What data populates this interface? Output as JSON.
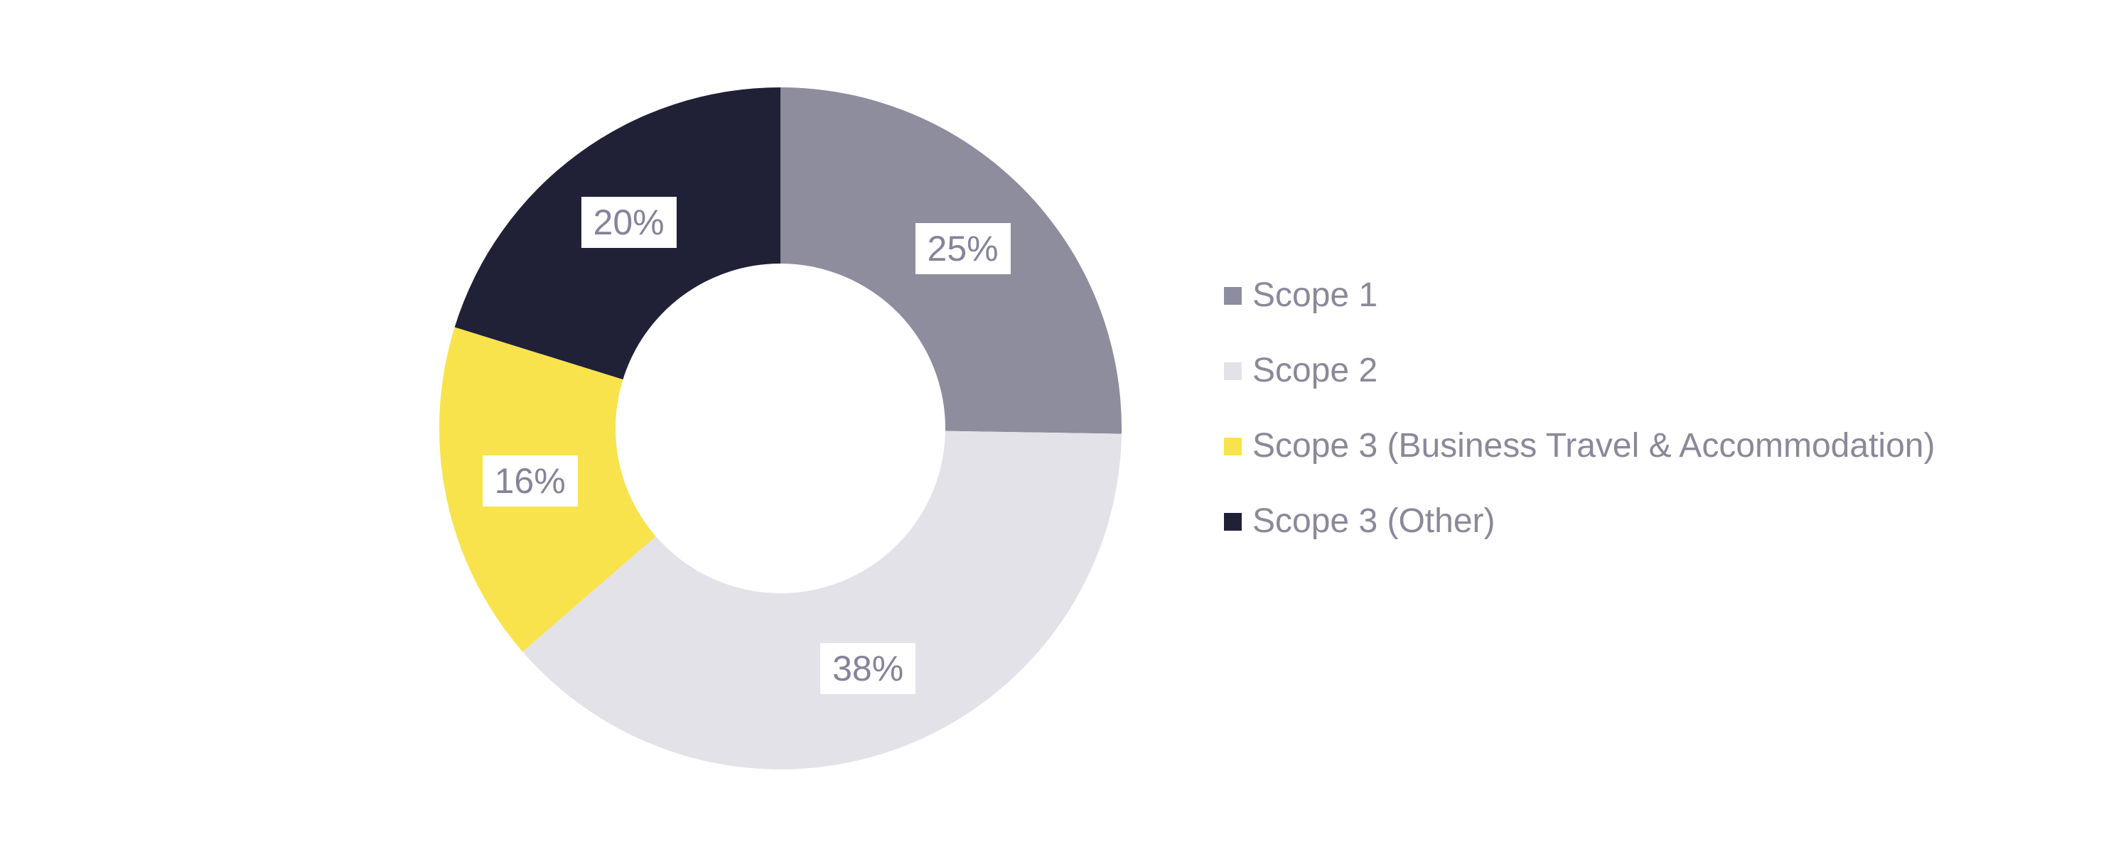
{
  "canvas": {
    "background": "#ffffff"
  },
  "chart_data": {
    "type": "pie",
    "subtype": "donut",
    "title": "",
    "units": "%",
    "start_angle_deg": 0,
    "direction": "clockwise",
    "inner_radius_ratio": 0.483,
    "legend_position": "right",
    "label_background": "#ffffff",
    "label_text_color": "#85849a",
    "legend_text_color": "#8a8999",
    "segments": [
      {
        "label": "Scope 1",
        "value": 25,
        "display": "25%",
        "color": "#8e8d9e"
      },
      {
        "label": "Scope 2",
        "value": 38,
        "display": "38%",
        "color": "#e3e2e9"
      },
      {
        "label": "Scope 3 (Business Travel & Accommodation)",
        "value": 16,
        "display": "16%",
        "color": "#f8e34c"
      },
      {
        "label": "Scope 3 (Other)",
        "value": 20,
        "display": "20%",
        "color": "#202137"
      }
    ]
  }
}
